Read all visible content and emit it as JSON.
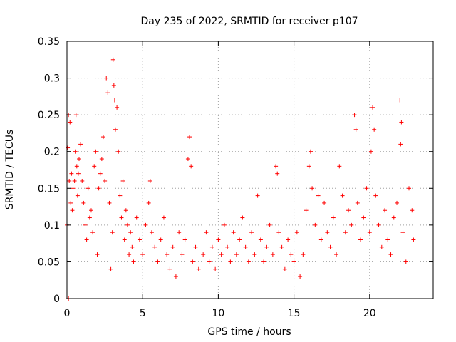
{
  "chart_data": {
    "type": "scatter",
    "title": "Day 235 of 2022, SRMTID for receiver p107",
    "xlabel": "GPS time / hours",
    "ylabel": "SRMTID / TECUs",
    "xlim": [
      0,
      24.2
    ],
    "ylim": [
      0,
      0.35
    ],
    "x_ticks": [
      0,
      5,
      10,
      15,
      20
    ],
    "x_tick_labels": [
      "0",
      "5",
      "10",
      "15",
      "20"
    ],
    "y_ticks": [
      0,
      0.05,
      0.1,
      0.15,
      0.2,
      0.25,
      0.3,
      0.35
    ],
    "y_tick_labels": [
      "0",
      "0.05",
      "0.1",
      "0.15",
      "0.2",
      "0.25",
      "0.3",
      "0.35"
    ],
    "grid": true,
    "marker": "plus",
    "marker_color": "#ff0000",
    "series": [
      {
        "name": "SRMTID",
        "points": [
          [
            0.0,
            0.1
          ],
          [
            0.05,
            0.205
          ],
          [
            0.1,
            0.25
          ],
          [
            0.1,
            0.0
          ],
          [
            0.15,
            0.16
          ],
          [
            0.2,
            0.24
          ],
          [
            0.25,
            0.13
          ],
          [
            0.3,
            0.17
          ],
          [
            0.35,
            0.12
          ],
          [
            0.4,
            0.15
          ],
          [
            0.5,
            0.16
          ],
          [
            0.55,
            0.2
          ],
          [
            0.6,
            0.25
          ],
          [
            0.65,
            0.18
          ],
          [
            0.7,
            0.14
          ],
          [
            0.75,
            0.17
          ],
          [
            0.8,
            0.19
          ],
          [
            0.9,
            0.21
          ],
          [
            1.0,
            0.16
          ],
          [
            1.1,
            0.13
          ],
          [
            1.2,
            0.1
          ],
          [
            1.3,
            0.08
          ],
          [
            1.4,
            0.15
          ],
          [
            1.5,
            0.11
          ],
          [
            1.6,
            0.12
          ],
          [
            1.7,
            0.09
          ],
          [
            1.8,
            0.18
          ],
          [
            1.9,
            0.2
          ],
          [
            2.0,
            0.06
          ],
          [
            2.1,
            0.15
          ],
          [
            2.2,
            0.17
          ],
          [
            2.3,
            0.19
          ],
          [
            2.4,
            0.22
          ],
          [
            2.5,
            0.16
          ],
          [
            2.6,
            0.3
          ],
          [
            2.7,
            0.28
          ],
          [
            2.8,
            0.13
          ],
          [
            2.9,
            0.04
          ],
          [
            3.0,
            0.09
          ],
          [
            3.05,
            0.325
          ],
          [
            3.1,
            0.29
          ],
          [
            3.15,
            0.27
          ],
          [
            3.2,
            0.23
          ],
          [
            3.3,
            0.26
          ],
          [
            3.4,
            0.2
          ],
          [
            3.5,
            0.14
          ],
          [
            3.6,
            0.11
          ],
          [
            3.7,
            0.16
          ],
          [
            3.8,
            0.08
          ],
          [
            3.9,
            0.12
          ],
          [
            4.0,
            0.1
          ],
          [
            4.1,
            0.06
          ],
          [
            4.2,
            0.09
          ],
          [
            4.3,
            0.07
          ],
          [
            4.4,
            0.05
          ],
          [
            4.6,
            0.11
          ],
          [
            4.8,
            0.08
          ],
          [
            5.0,
            0.06
          ],
          [
            5.2,
            0.1
          ],
          [
            5.4,
            0.13
          ],
          [
            5.5,
            0.16
          ],
          [
            5.6,
            0.09
          ],
          [
            5.8,
            0.07
          ],
          [
            6.0,
            0.05
          ],
          [
            6.2,
            0.08
          ],
          [
            6.4,
            0.11
          ],
          [
            6.6,
            0.06
          ],
          [
            6.8,
            0.04
          ],
          [
            7.0,
            0.07
          ],
          [
            7.2,
            0.03
          ],
          [
            7.4,
            0.09
          ],
          [
            7.6,
            0.06
          ],
          [
            7.8,
            0.08
          ],
          [
            8.0,
            0.19
          ],
          [
            8.1,
            0.22
          ],
          [
            8.2,
            0.18
          ],
          [
            8.3,
            0.05
          ],
          [
            8.5,
            0.07
          ],
          [
            8.7,
            0.04
          ],
          [
            9.0,
            0.06
          ],
          [
            9.2,
            0.09
          ],
          [
            9.4,
            0.05
          ],
          [
            9.6,
            0.07
          ],
          [
            9.8,
            0.04
          ],
          [
            10.0,
            0.08
          ],
          [
            10.2,
            0.06
          ],
          [
            10.4,
            0.1
          ],
          [
            10.6,
            0.07
          ],
          [
            10.8,
            0.05
          ],
          [
            11.0,
            0.09
          ],
          [
            11.2,
            0.06
          ],
          [
            11.4,
            0.08
          ],
          [
            11.6,
            0.11
          ],
          [
            11.8,
            0.07
          ],
          [
            12.0,
            0.05
          ],
          [
            12.2,
            0.09
          ],
          [
            12.4,
            0.06
          ],
          [
            12.6,
            0.14
          ],
          [
            12.8,
            0.08
          ],
          [
            13.0,
            0.05
          ],
          [
            13.2,
            0.07
          ],
          [
            13.4,
            0.1
          ],
          [
            13.6,
            0.06
          ],
          [
            13.8,
            0.18
          ],
          [
            13.9,
            0.17
          ],
          [
            14.0,
            0.09
          ],
          [
            14.2,
            0.07
          ],
          [
            14.4,
            0.04
          ],
          [
            14.6,
            0.08
          ],
          [
            14.8,
            0.06
          ],
          [
            15.0,
            0.05
          ],
          [
            15.2,
            0.09
          ],
          [
            15.4,
            0.03
          ],
          [
            15.6,
            0.06
          ],
          [
            15.8,
            0.12
          ],
          [
            16.0,
            0.18
          ],
          [
            16.1,
            0.2
          ],
          [
            16.2,
            0.15
          ],
          [
            16.4,
            0.1
          ],
          [
            16.6,
            0.14
          ],
          [
            16.8,
            0.08
          ],
          [
            17.0,
            0.13
          ],
          [
            17.2,
            0.09
          ],
          [
            17.4,
            0.07
          ],
          [
            17.6,
            0.11
          ],
          [
            17.8,
            0.06
          ],
          [
            18.0,
            0.18
          ],
          [
            18.2,
            0.14
          ],
          [
            18.4,
            0.09
          ],
          [
            18.6,
            0.12
          ],
          [
            18.8,
            0.1
          ],
          [
            19.0,
            0.25
          ],
          [
            19.1,
            0.23
          ],
          [
            19.2,
            0.13
          ],
          [
            19.4,
            0.08
          ],
          [
            19.6,
            0.11
          ],
          [
            19.8,
            0.15
          ],
          [
            20.0,
            0.09
          ],
          [
            20.1,
            0.2
          ],
          [
            20.2,
            0.26
          ],
          [
            20.3,
            0.23
          ],
          [
            20.4,
            0.14
          ],
          [
            20.6,
            0.1
          ],
          [
            20.8,
            0.07
          ],
          [
            21.0,
            0.12
          ],
          [
            21.2,
            0.08
          ],
          [
            21.4,
            0.06
          ],
          [
            21.6,
            0.11
          ],
          [
            21.8,
            0.13
          ],
          [
            22.0,
            0.27
          ],
          [
            22.05,
            0.21
          ],
          [
            22.1,
            0.24
          ],
          [
            22.2,
            0.09
          ],
          [
            22.4,
            0.05
          ],
          [
            22.6,
            0.15
          ],
          [
            22.8,
            0.12
          ],
          [
            22.9,
            0.08
          ]
        ]
      }
    ]
  }
}
